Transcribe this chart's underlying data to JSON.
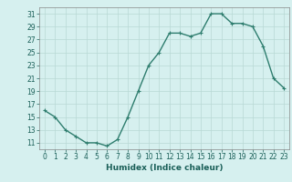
{
  "x": [
    0,
    1,
    2,
    3,
    4,
    5,
    6,
    7,
    8,
    9,
    10,
    11,
    12,
    13,
    14,
    15,
    16,
    17,
    18,
    19,
    20,
    21,
    22,
    23
  ],
  "y": [
    16,
    15,
    13,
    12,
    11,
    11,
    10.5,
    11.5,
    15,
    19,
    23,
    25,
    28,
    28,
    27.5,
    28,
    31,
    31,
    29.5,
    29.5,
    29,
    26,
    21,
    19.5
  ],
  "line_color": "#2e7d6e",
  "marker": "+",
  "marker_color": "#2e7d6e",
  "bg_color": "#d6f0ef",
  "grid_color": "#b8d8d5",
  "xlabel": "Humidex (Indice chaleur)",
  "xlim": [
    -0.5,
    23.5
  ],
  "ylim": [
    10,
    32
  ],
  "yticks": [
    11,
    13,
    15,
    17,
    19,
    21,
    23,
    25,
    27,
    29,
    31
  ],
  "xticks": [
    0,
    1,
    2,
    3,
    4,
    5,
    6,
    7,
    8,
    9,
    10,
    11,
    12,
    13,
    14,
    15,
    16,
    17,
    18,
    19,
    20,
    21,
    22,
    23
  ],
  "xlabel_fontsize": 6.5,
  "tick_fontsize": 5.5,
  "linewidth": 1.0,
  "markersize": 3.5
}
